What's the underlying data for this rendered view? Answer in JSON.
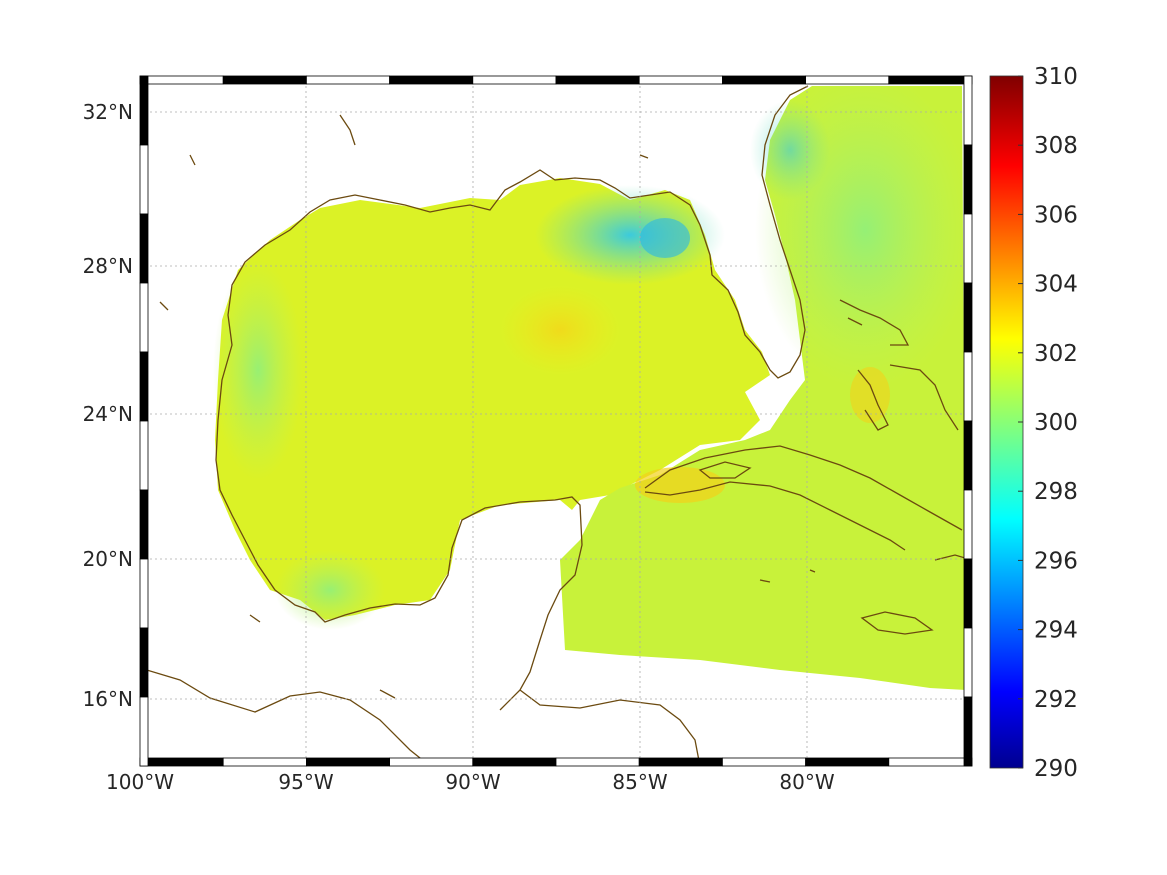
{
  "map": {
    "projection": "mercator",
    "lon_range": [
      -100,
      -75
    ],
    "lat_range": [
      14.2,
      33
    ],
    "coastline_color": "#6b4a10",
    "grid": "dotted",
    "frame": "black-white-checker",
    "lon_ticks": [
      {
        "value": -100,
        "label": "100°W"
      },
      {
        "value": -95,
        "label": "95°W"
      },
      {
        "value": -90,
        "label": "90°W"
      },
      {
        "value": -85,
        "label": "85°W"
      },
      {
        "value": -80,
        "label": "80°W"
      }
    ],
    "lat_ticks": [
      {
        "value": 32,
        "label": "32°N"
      },
      {
        "value": 28,
        "label": "28°N"
      },
      {
        "value": 24,
        "label": "24°N"
      },
      {
        "value": 20,
        "label": "20°N"
      },
      {
        "value": 16,
        "label": "16°N"
      }
    ]
  },
  "colorbar": {
    "colormap": "jet",
    "min": 290,
    "max": 310,
    "tick_labels": [
      "310",
      "308",
      "306",
      "304",
      "302",
      "300",
      "298",
      "296",
      "294",
      "292",
      "290"
    ]
  }
}
